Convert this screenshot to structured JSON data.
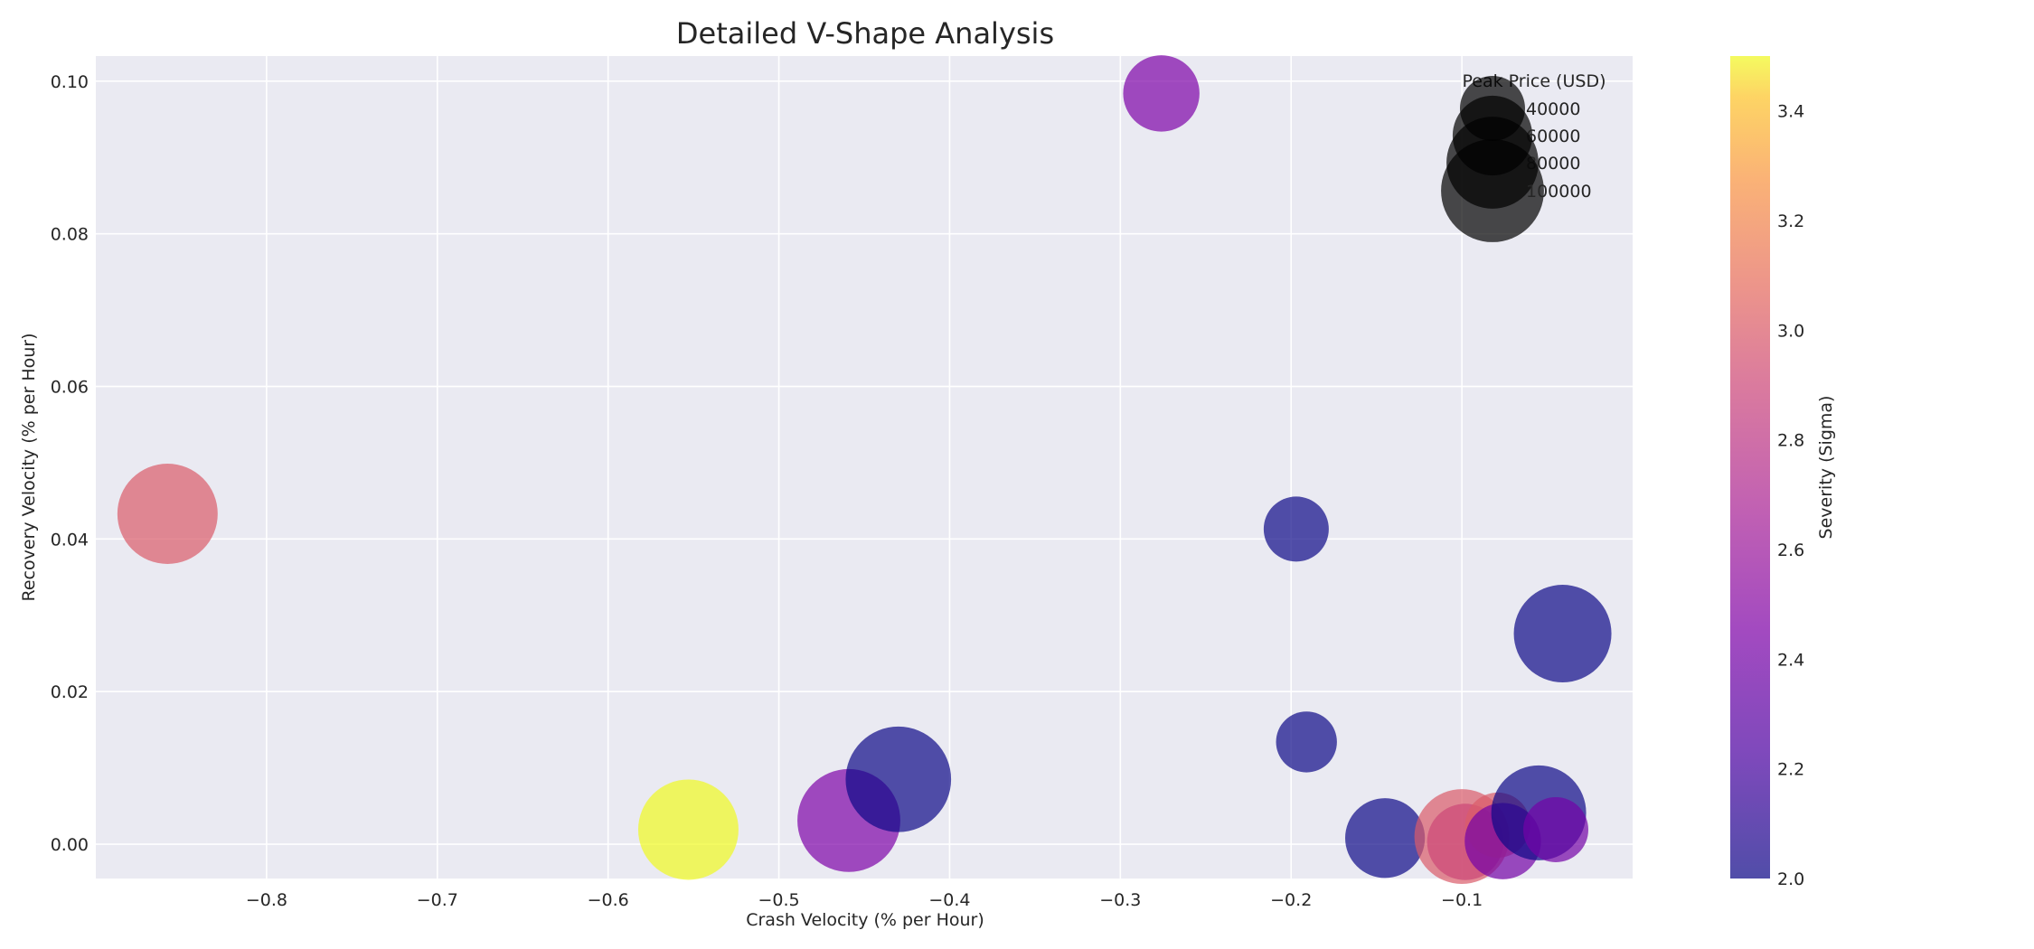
{
  "chart_data": {
    "type": "scatter",
    "title": "Detailed V-Shape Analysis",
    "xlabel": "Crash Velocity (% per Hour)",
    "ylabel": "Recovery Velocity (% per Hour)",
    "xlim": [
      -0.9,
      0.0
    ],
    "ylim": [
      -0.0045,
      0.1033
    ],
    "x_ticks": [
      "−0.8",
      "−0.7",
      "−0.6",
      "−0.5",
      "−0.4",
      "−0.3",
      "−0.2",
      "−0.1"
    ],
    "x_tick_values": [
      -0.8,
      -0.7,
      -0.6,
      -0.5,
      -0.4,
      -0.3,
      -0.2,
      -0.1
    ],
    "y_ticks": [
      "0.00",
      "0.02",
      "0.04",
      "0.06",
      "0.08",
      "0.10"
    ],
    "y_tick_values": [
      0.0,
      0.02,
      0.04,
      0.06,
      0.08,
      0.1
    ],
    "grid": true,
    "size_legend": {
      "title": "Peak Price (USD)",
      "placement": "top-right",
      "entries": [
        {
          "label": "40000",
          "value": 40000
        },
        {
          "label": "60000",
          "value": 60000
        },
        {
          "label": "80000",
          "value": 80000
        },
        {
          "label": "100000",
          "value": 100000
        }
      ]
    },
    "colorbar": {
      "label": "Severity (Sigma)",
      "range": [
        2.0,
        3.5
      ],
      "ticks": [
        "2.0",
        "2.2",
        "2.4",
        "2.6",
        "2.8",
        "3.0",
        "3.2",
        "3.4"
      ],
      "tick_values": [
        2.0,
        2.2,
        2.4,
        2.6,
        2.8,
        3.0,
        3.2,
        3.4
      ],
      "colormap": "plasma"
    },
    "points": [
      {
        "x": -0.858,
        "y": 0.0433,
        "severity": 3.0,
        "peak_price": 95000
      },
      {
        "x": -0.553,
        "y": 0.0019,
        "severity": 3.5,
        "peak_price": 95000
      },
      {
        "x": -0.459,
        "y": 0.0031,
        "severity": 2.45,
        "peak_price": 100000
      },
      {
        "x": -0.43,
        "y": 0.0085,
        "severity": 2.0,
        "peak_price": 105000
      },
      {
        "x": -0.276,
        "y": 0.0984,
        "severity": 2.45,
        "peak_price": 55000
      },
      {
        "x": -0.197,
        "y": 0.0413,
        "severity": 2.0,
        "peak_price": 40000
      },
      {
        "x": -0.191,
        "y": 0.0134,
        "severity": 2.0,
        "peak_price": 35000
      },
      {
        "x": -0.145,
        "y": 0.0008,
        "severity": 2.0,
        "peak_price": 60000
      },
      {
        "x": -0.1,
        "y": 0.001,
        "severity": 3.0,
        "peak_price": 85000
      },
      {
        "x": -0.098,
        "y": 0.0003,
        "severity": 2.9,
        "peak_price": 55000
      },
      {
        "x": -0.079,
        "y": 0.0025,
        "severity": 3.0,
        "peak_price": 40000
      },
      {
        "x": -0.076,
        "y": 0.0004,
        "severity": 2.4,
        "peak_price": 55000
      },
      {
        "x": -0.055,
        "y": 0.0041,
        "severity": 2.0,
        "peak_price": 85000
      },
      {
        "x": -0.045,
        "y": 0.0019,
        "severity": 2.4,
        "peak_price": 40000
      },
      {
        "x": -0.041,
        "y": 0.0276,
        "severity": 2.0,
        "peak_price": 90000
      }
    ]
  }
}
